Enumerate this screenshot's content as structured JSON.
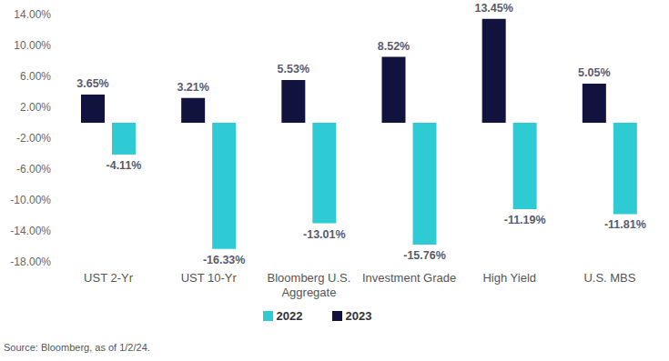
{
  "chart_data": {
    "type": "bar",
    "categories": [
      "UST 2-Yr",
      "UST 10-Yr",
      "Bloomberg U.S. Aggregate",
      "Investment Grade",
      "High Yield",
      "U.S. MBS"
    ],
    "series": [
      {
        "name": "2023",
        "color": "#12123e",
        "values": [
          3.65,
          3.21,
          5.53,
          8.52,
          13.45,
          5.05
        ],
        "value_labels": [
          "3.65%",
          "3.21%",
          "5.53%",
          "8.52%",
          "13.45%",
          "5.05%"
        ]
      },
      {
        "name": "2022",
        "color": "#2ecbd4",
        "values": [
          -4.11,
          -16.33,
          -13.01,
          -15.76,
          -11.19,
          -11.81
        ],
        "value_labels": [
          "-4.11%",
          "-16.33%",
          "-13.01%",
          "-15.76%",
          "-11.19%",
          "-11.81%"
        ]
      }
    ],
    "ylim": [
      -18,
      14
    ],
    "yticks": [
      {
        "value": -18,
        "label": "-18.00%"
      },
      {
        "value": -14,
        "label": "-14.00%"
      },
      {
        "value": -10,
        "label": "-10.00%"
      },
      {
        "value": -6,
        "label": "-6.00%"
      },
      {
        "value": -2,
        "label": "-2.00%"
      },
      {
        "value": 2,
        "label": "2.00%"
      },
      {
        "value": 6,
        "label": "6.00%"
      },
      {
        "value": 10,
        "label": "10.00%"
      },
      {
        "value": 14,
        "label": "14.00%"
      }
    ],
    "grid": false,
    "legend": "bottom",
    "data_labels": true,
    "source": "Source: Bloomberg, as of 1/2/24."
  }
}
